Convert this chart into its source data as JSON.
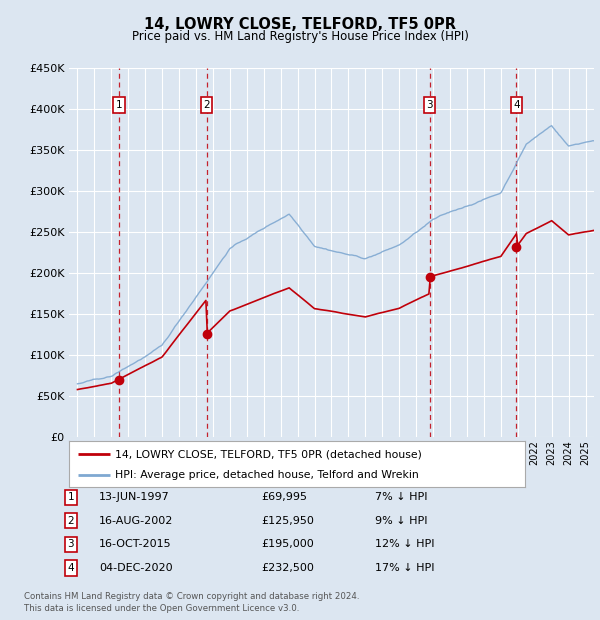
{
  "title": "14, LOWRY CLOSE, TELFORD, TF5 0PR",
  "subtitle": "Price paid vs. HM Land Registry's House Price Index (HPI)",
  "footer1": "Contains HM Land Registry data © Crown copyright and database right 2024.",
  "footer2": "This data is licensed under the Open Government Licence v3.0.",
  "legend_house": "14, LOWRY CLOSE, TELFORD, TF5 0PR (detached house)",
  "legend_hpi": "HPI: Average price, detached house, Telford and Wrekin",
  "sales": [
    {
      "label": "1",
      "date": "13-JUN-1997",
      "price": 69995,
      "pct": "7%",
      "x": 1997.45
    },
    {
      "label": "2",
      "date": "16-AUG-2002",
      "price": 125950,
      "pct": "9%",
      "x": 2002.62
    },
    {
      "label": "3",
      "date": "16-OCT-2015",
      "price": 195000,
      "pct": "12%",
      "x": 2015.79
    },
    {
      "label": "4",
      "date": "04-DEC-2020",
      "price": 232500,
      "pct": "17%",
      "x": 2020.92
    }
  ],
  "table_rows": [
    [
      "1",
      "13-JUN-1997",
      "£69,995",
      "7% ↓ HPI"
    ],
    [
      "2",
      "16-AUG-2002",
      "£125,950",
      "9% ↓ HPI"
    ],
    [
      "3",
      "16-OCT-2015",
      "£195,000",
      "12% ↓ HPI"
    ],
    [
      "4",
      "04-DEC-2020",
      "£232,500",
      "17% ↓ HPI"
    ]
  ],
  "xmin": 1994.5,
  "xmax": 2025.5,
  "ymin": 0,
  "ymax": 450000,
  "yticks": [
    0,
    50000,
    100000,
    150000,
    200000,
    250000,
    300000,
    350000,
    400000,
    450000
  ],
  "bg_color": "#dce6f1",
  "plot_bg_color": "#dce6f1",
  "grid_color": "#ffffff",
  "house_line_color": "#c0000a",
  "hpi_line_color": "#7fa8d1",
  "sale_marker_color": "#c0000a",
  "dashed_line_color": "#c0000a",
  "label_box_color": "#c0000a"
}
